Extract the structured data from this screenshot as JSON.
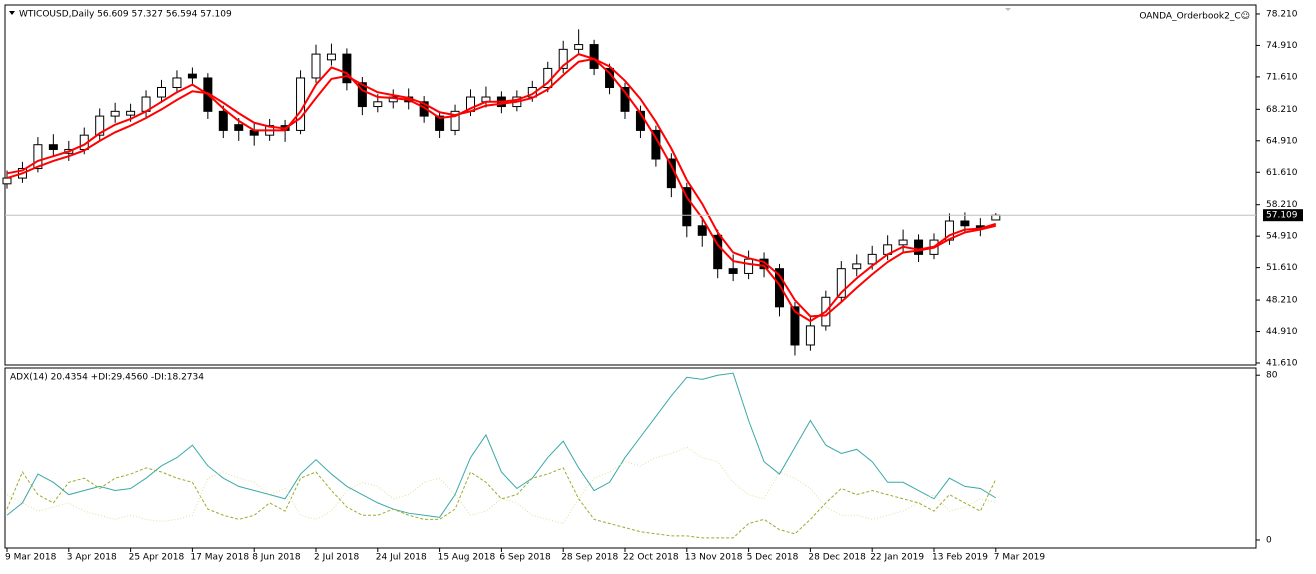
{
  "chart_data": [
    {
      "type": "candlestick",
      "title": "WTICOUSD,Daily  56.609 57.327 56.594 57.109",
      "annotation": "OANDA_Orderbook2_C☺",
      "categories": [
        "9 Mar 2018",
        null,
        null,
        null,
        "3 Apr 2018",
        null,
        null,
        null,
        "25 Apr 2018",
        null,
        null,
        null,
        "17 May 2018",
        null,
        null,
        null,
        "8 Jun 2018",
        null,
        null,
        null,
        "2 Jul 2018",
        null,
        null,
        null,
        "24 Jul 2018",
        null,
        null,
        null,
        "15 Aug 2018",
        null,
        null,
        null,
        "6 Sep 2018",
        null,
        null,
        null,
        "28 Sep 2018",
        null,
        null,
        null,
        "22 Oct 2018",
        null,
        null,
        null,
        "13 Nov 2018",
        null,
        null,
        null,
        "5 Dec 2018",
        null,
        null,
        null,
        "28 Dec 2018",
        null,
        null,
        null,
        "22 Jan 2019",
        null,
        null,
        null,
        "13 Feb 2019",
        null,
        null,
        null,
        "7 Mar 2019"
      ],
      "open": [
        60.4,
        61.0,
        62.0,
        64.5,
        63.6,
        64.0,
        65.5,
        67.5,
        67.6,
        68.0,
        69.5,
        70.5,
        71.9,
        71.5,
        68.0,
        66.6,
        66.0,
        65.5,
        66.5,
        66.0,
        71.5,
        73.4,
        74.0,
        71.0,
        68.5,
        69.0,
        69.5,
        69.0,
        67.5,
        66.0,
        68.0,
        69.0,
        69.5,
        68.5,
        69.5,
        70.5,
        72.5,
        74.5,
        75.0,
        72.5,
        70.5,
        68.0,
        66.0,
        63.0,
        60.0,
        56.0,
        55.0,
        51.5,
        51.0,
        52.5,
        51.5,
        47.5,
        43.5,
        45.5,
        48.5,
        51.5,
        52.0,
        53.0,
        54.0,
        54.5,
        53.0,
        54.5,
        56.5,
        56.0,
        56.609
      ],
      "high": [
        61.8,
        62.7,
        65.3,
        65.6,
        64.9,
        66.3,
        68.3,
        68.9,
        68.8,
        70.2,
        71.3,
        72.3,
        72.6,
        72.0,
        68.6,
        67.3,
        66.8,
        67.2,
        67.1,
        72.3,
        75.0,
        75.1,
        74.6,
        71.6,
        69.8,
        70.3,
        70.4,
        69.6,
        68.0,
        68.7,
        70.3,
        70.6,
        70.1,
        70.2,
        71.2,
        73.2,
        75.4,
        76.6,
        75.5,
        73.0,
        71.0,
        68.6,
        66.5,
        63.6,
        60.5,
        56.8,
        55.6,
        53.0,
        53.4,
        53.2,
        52.0,
        48.0,
        46.4,
        49.2,
        52.3,
        53.0,
        53.9,
        55.0,
        55.6,
        55.1,
        55.2,
        57.3,
        57.4,
        56.8,
        57.327
      ],
      "low": [
        59.9,
        60.5,
        61.6,
        63.2,
        62.8,
        63.5,
        65.0,
        66.8,
        66.9,
        67.4,
        68.9,
        69.9,
        70.7,
        67.2,
        65.2,
        64.9,
        64.4,
        64.9,
        64.8,
        65.6,
        71.0,
        72.8,
        70.2,
        67.6,
        67.9,
        68.3,
        68.2,
        66.8,
        65.2,
        65.5,
        67.5,
        68.4,
        67.8,
        68.0,
        69.0,
        70.0,
        72.0,
        74.0,
        71.8,
        69.8,
        67.2,
        65.2,
        62.2,
        59.0,
        54.8,
        53.8,
        50.5,
        50.2,
        50.4,
        50.6,
        46.5,
        42.4,
        42.9,
        45.0,
        48.0,
        50.7,
        51.4,
        52.4,
        53.3,
        52.2,
        52.5,
        54.0,
        55.3,
        54.9,
        56.594
      ],
      "close": [
        61.0,
        62.0,
        64.5,
        64.0,
        64.0,
        65.5,
        67.5,
        68.0,
        68.0,
        69.5,
        70.5,
        71.5,
        71.5,
        68.0,
        66.0,
        66.0,
        65.5,
        66.5,
        66.0,
        71.5,
        74.0,
        74.0,
        71.0,
        68.5,
        69.0,
        69.5,
        69.0,
        67.5,
        66.0,
        68.0,
        69.5,
        69.5,
        68.5,
        69.5,
        70.5,
        72.5,
        74.5,
        75.0,
        72.5,
        70.5,
        68.0,
        66.0,
        63.0,
        60.0,
        56.0,
        55.0,
        51.5,
        51.0,
        52.5,
        51.5,
        47.5,
        43.5,
        45.5,
        48.5,
        51.5,
        52.0,
        53.0,
        54.0,
        54.5,
        53.0,
        54.5,
        56.5,
        56.0,
        55.8,
        57.109
      ],
      "up_color": "#ffffff",
      "down_color": "#000000",
      "wick_color": "#000000",
      "series": [
        {
          "color": "#ff0000",
          "values": [
            61.5,
            61.8,
            62.8,
            63.3,
            63.8,
            64.5,
            65.7,
            66.6,
            67.2,
            68.0,
            69.0,
            70.0,
            70.8,
            69.8,
            68.3,
            67.0,
            66.0,
            66.0,
            66.0,
            68.0,
            70.8,
            72.6,
            72.0,
            70.2,
            69.5,
            69.4,
            69.2,
            68.4,
            67.3,
            67.5,
            68.3,
            69.0,
            69.0,
            69.2,
            69.8,
            71.0,
            72.8,
            74.0,
            73.5,
            72.0,
            70.0,
            67.8,
            65.2,
            62.3,
            59.0,
            56.8,
            54.0,
            52.3,
            52.0,
            51.8,
            49.8,
            47.0,
            46.0,
            47.0,
            49.0,
            50.5,
            51.8,
            53.0,
            53.8,
            53.5,
            53.8,
            55.0,
            55.6,
            55.7,
            56.2
          ]
        },
        {
          "color": "#ff0000",
          "values": [
            61.0,
            61.5,
            62.2,
            62.8,
            63.3,
            63.9,
            64.9,
            65.8,
            66.5,
            67.3,
            68.2,
            69.2,
            70.1,
            69.9,
            68.9,
            67.8,
            66.8,
            66.4,
            66.2,
            67.3,
            69.4,
            71.4,
            71.7,
            70.8,
            70.0,
            69.7,
            69.4,
            68.8,
            67.9,
            67.6,
            68.0,
            68.6,
            68.8,
            69.0,
            69.4,
            70.3,
            71.8,
            73.2,
            73.5,
            72.7,
            71.2,
            69.3,
            66.9,
            64.1,
            60.8,
            58.3,
            55.3,
            53.2,
            52.6,
            52.2,
            50.8,
            48.2,
            46.5,
            46.6,
            48.0,
            49.5,
            50.9,
            52.2,
            53.2,
            53.4,
            53.7,
            54.6,
            55.3,
            55.6,
            56.0
          ]
        }
      ],
      "ylim": [
        41.4,
        79.15
      ],
      "yticks": [
        {
          "value": 78.21,
          "label": "78.210"
        },
        {
          "value": 74.91,
          "label": "74.910"
        },
        {
          "value": 71.61,
          "label": "71.610"
        },
        {
          "value": 68.21,
          "label": "68.210"
        },
        {
          "value": 64.91,
          "label": "64.910"
        },
        {
          "value": 61.61,
          "label": "61.610"
        },
        {
          "value": 58.21,
          "label": "58.210"
        },
        {
          "value": 54.91,
          "label": "54.910"
        },
        {
          "value": 51.61,
          "label": "51.610"
        },
        {
          "value": 48.21,
          "label": "48.210"
        },
        {
          "value": 44.91,
          "label": "44.910"
        },
        {
          "value": 41.61,
          "label": "41.610"
        }
      ],
      "last_price": 57.109,
      "last_price_color": "#c0c0c0"
    },
    {
      "type": "line",
      "title": "ADX(14) 20.4354 +DI:29.4560 -DI:18.2734",
      "series": [
        {
          "color": "#3aa8a8",
          "style": "solid",
          "values": [
            12,
            18,
            32,
            28,
            22,
            24,
            26,
            24,
            25,
            30,
            36,
            40,
            46,
            36,
            30,
            26,
            24,
            22,
            20,
            32,
            39,
            32,
            26,
            22,
            18,
            15,
            13,
            12,
            11,
            22,
            40,
            51,
            33,
            25,
            30,
            40,
            48,
            35,
            24,
            28,
            40,
            50,
            60,
            70,
            79,
            78,
            80,
            81,
            58,
            38,
            32,
            45,
            58,
            46,
            42,
            44,
            38,
            28,
            28,
            24,
            20,
            30,
            26,
            25,
            20.4354
          ]
        },
        {
          "color": "#9aac2a",
          "style": "dashed",
          "values": [
            15,
            33,
            22,
            18,
            28,
            30,
            25,
            30,
            32,
            35,
            33,
            30,
            28,
            15,
            12,
            10,
            12,
            18,
            14,
            30,
            33,
            24,
            16,
            12,
            12,
            15,
            12,
            10,
            10,
            15,
            33,
            28,
            20,
            22,
            30,
            32,
            35,
            20,
            10,
            8,
            6,
            4,
            3,
            2,
            2,
            1,
            1,
            1,
            8,
            10,
            5,
            3,
            10,
            18,
            25,
            22,
            24,
            22,
            20,
            18,
            14,
            22,
            18,
            14,
            29.456
          ]
        },
        {
          "color": "#e6dc9a",
          "style": "dotted",
          "values": [
            22,
            18,
            14,
            16,
            18,
            14,
            12,
            10,
            12,
            10,
            9,
            10,
            12,
            30,
            33,
            30,
            28,
            22,
            25,
            12,
            10,
            14,
            24,
            28,
            26,
            20,
            22,
            28,
            30,
            22,
            12,
            14,
            20,
            18,
            12,
            10,
            8,
            20,
            30,
            33,
            38,
            36,
            40,
            42,
            45,
            40,
            38,
            28,
            22,
            20,
            33,
            30,
            25,
            16,
            12,
            12,
            10,
            12,
            14,
            18,
            22,
            14,
            16,
            20,
            18.2734
          ]
        }
      ],
      "ylim": [
        -3.9,
        83.5
      ],
      "yticks": [
        0,
        80
      ]
    }
  ]
}
